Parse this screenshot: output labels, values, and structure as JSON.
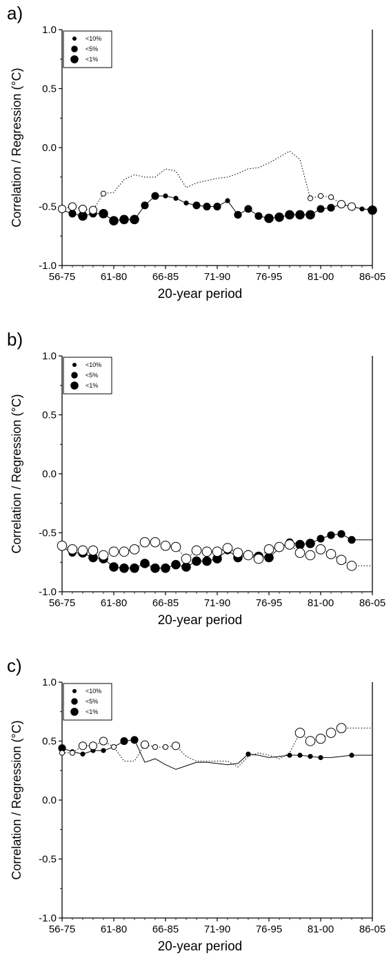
{
  "chart_data": [
    {
      "type": "line",
      "panel_label": "a)",
      "xlabel": "20-year period",
      "ylabel": "Correlation / Regression (°C)",
      "ylim": [
        -1.0,
        1.0
      ],
      "yticks": [
        "1.0",
        "0.5",
        "0.0",
        "-0.5",
        "-1.0"
      ],
      "xticks": [
        "56-75",
        "61-80",
        "66-85",
        "71-90",
        "76-95",
        "81-00",
        "86-05"
      ],
      "legend": {
        "position": "top-left",
        "entries": [
          "<10%",
          "<5%",
          "<1%"
        ]
      },
      "grid": false,
      "x": [
        1965,
        1966,
        1967,
        1968,
        1969,
        1970,
        1971,
        1972,
        1973,
        1974,
        1975,
        1976,
        1977,
        1978,
        1979,
        1980,
        1981,
        1982,
        1983,
        1984,
        1985,
        1986,
        1987,
        1988,
        1989,
        1990,
        1991,
        1992,
        1993,
        1994,
        1995
      ],
      "series": [
        {
          "style": "solid-filled",
          "values": [
            -0.53,
            -0.56,
            -0.58,
            -0.56,
            -0.56,
            -0.62,
            -0.61,
            -0.61,
            -0.49,
            -0.41,
            -0.41,
            -0.43,
            -0.47,
            -0.49,
            -0.5,
            -0.5,
            -0.45,
            -0.57,
            -0.52,
            -0.58,
            -0.6,
            -0.59,
            -0.57,
            -0.57,
            -0.57,
            -0.52,
            -0.51,
            -0.48,
            -0.5,
            -0.52,
            -0.53
          ],
          "significance": [
            0,
            2,
            3,
            2,
            3,
            3,
            3,
            3,
            2,
            2,
            1,
            1,
            1,
            2,
            2,
            2,
            1,
            2,
            2,
            2,
            3,
            3,
            3,
            3,
            3,
            2,
            2,
            1,
            1,
            1,
            3
          ]
        },
        {
          "style": "dotted-open",
          "values": [
            -0.52,
            -0.5,
            -0.52,
            -0.53,
            -0.39,
            -0.38,
            -0.27,
            -0.23,
            -0.25,
            -0.25,
            -0.18,
            -0.2,
            -0.34,
            -0.3,
            -0.28,
            -0.26,
            -0.25,
            -0.22,
            -0.18,
            -0.17,
            -0.13,
            -0.08,
            -0.03,
            -0.1,
            -0.43,
            -0.41,
            -0.42,
            -0.48,
            -0.5,
            -0.52,
            -0.52
          ],
          "significance": [
            2,
            2,
            2,
            2,
            1,
            0,
            0,
            0,
            0,
            0,
            0,
            0,
            0,
            0,
            0,
            0,
            0,
            0,
            0,
            0,
            0,
            0,
            0,
            0,
            1,
            1,
            1,
            2,
            2,
            0,
            0
          ]
        }
      ]
    },
    {
      "type": "line",
      "panel_label": "b)",
      "xlabel": "20-year period",
      "ylabel": "Correlation / Regression (°C)",
      "ylim": [
        -1.0,
        1.0
      ],
      "yticks": [
        "1.0",
        "0.5",
        "0.0",
        "-0.5",
        "-1.0"
      ],
      "xticks": [
        "56-75",
        "61-80",
        "66-85",
        "71-90",
        "76-95",
        "81-00",
        "86-05"
      ],
      "legend": {
        "position": "top-left",
        "entries": [
          "<10%",
          "<5%",
          "<1%"
        ]
      },
      "grid": false,
      "x": [
        1965,
        1966,
        1967,
        1968,
        1969,
        1970,
        1971,
        1972,
        1973,
        1974,
        1975,
        1976,
        1977,
        1978,
        1979,
        1980,
        1981,
        1982,
        1983,
        1984,
        1985,
        1986,
        1987,
        1988,
        1989,
        1990,
        1991,
        1992,
        1993,
        1994,
        1995
      ],
      "series": [
        {
          "style": "solid-filled",
          "values": [
            -0.62,
            -0.67,
            -0.67,
            -0.71,
            -0.72,
            -0.79,
            -0.8,
            -0.8,
            -0.76,
            -0.8,
            -0.8,
            -0.77,
            -0.79,
            -0.74,
            -0.74,
            -0.72,
            -0.65,
            -0.71,
            -0.68,
            -0.7,
            -0.71,
            -0.63,
            -0.58,
            -0.6,
            -0.59,
            -0.55,
            -0.52,
            -0.51,
            -0.56,
            -0.56,
            -0.56
          ],
          "significance": [
            2,
            2,
            3,
            3,
            3,
            3,
            3,
            3,
            3,
            3,
            3,
            3,
            3,
            3,
            3,
            3,
            2,
            3,
            2,
            3,
            3,
            2,
            2,
            3,
            3,
            2,
            2,
            2,
            2,
            0,
            0
          ]
        },
        {
          "style": "dotted-open",
          "values": [
            -0.61,
            -0.64,
            -0.65,
            -0.65,
            -0.69,
            -0.66,
            -0.66,
            -0.64,
            -0.58,
            -0.58,
            -0.61,
            -0.62,
            -0.72,
            -0.65,
            -0.66,
            -0.66,
            -0.63,
            -0.67,
            -0.69,
            -0.72,
            -0.64,
            -0.62,
            -0.6,
            -0.67,
            -0.69,
            -0.64,
            -0.68,
            -0.73,
            -0.78,
            -0.78,
            -0.78
          ],
          "significance": [
            3,
            3,
            3,
            3,
            3,
            3,
            3,
            3,
            3,
            3,
            3,
            3,
            3,
            3,
            3,
            3,
            3,
            3,
            3,
            3,
            3,
            3,
            3,
            3,
            3,
            3,
            3,
            3,
            3,
            0,
            0
          ]
        }
      ]
    },
    {
      "type": "line",
      "panel_label": "c)",
      "xlabel": "20-year period",
      "ylabel": "Correlation / Regression (°C)",
      "ylim": [
        -1.0,
        1.0
      ],
      "yticks": [
        "1.0",
        "0.5",
        "0.0",
        "-0.5",
        "-1.0"
      ],
      "xticks": [
        "56-75",
        "61-80",
        "66-85",
        "71-90",
        "76-95",
        "81-00",
        "86-05"
      ],
      "legend": {
        "position": "top-left",
        "entries": [
          "<10%",
          "<5%",
          "<1%"
        ]
      },
      "grid": false,
      "x": [
        1965,
        1966,
        1967,
        1968,
        1969,
        1970,
        1971,
        1972,
        1973,
        1974,
        1975,
        1976,
        1977,
        1978,
        1979,
        1980,
        1981,
        1982,
        1983,
        1984,
        1985,
        1986,
        1987,
        1988,
        1989,
        1990,
        1991,
        1992,
        1993,
        1994,
        1995
      ],
      "series": [
        {
          "style": "solid-filled",
          "values": [
            0.44,
            0.41,
            0.39,
            0.42,
            0.42,
            0.45,
            0.5,
            0.51,
            0.32,
            0.35,
            0.3,
            0.26,
            0.29,
            0.32,
            0.32,
            0.31,
            0.3,
            0.31,
            0.39,
            0.38,
            0.36,
            0.37,
            0.38,
            0.38,
            0.37,
            0.36,
            0.36,
            0.37,
            0.38,
            0.38,
            0.38
          ],
          "significance": [
            2,
            1,
            1,
            1,
            1,
            1,
            2,
            2,
            0,
            0,
            0,
            0,
            0,
            0,
            0,
            0,
            0,
            0,
            1,
            0,
            0,
            0,
            1,
            1,
            1,
            1,
            0,
            0,
            1,
            0,
            0
          ]
        },
        {
          "style": "dotted-open",
          "values": [
            0.4,
            0.4,
            0.46,
            0.46,
            0.5,
            0.45,
            0.33,
            0.33,
            0.47,
            0.45,
            0.45,
            0.46,
            0.37,
            0.33,
            0.33,
            0.33,
            0.33,
            0.28,
            0.37,
            0.4,
            0.38,
            0.35,
            0.4,
            0.57,
            0.5,
            0.52,
            0.57,
            0.61,
            0.61,
            0.61,
            0.61
          ],
          "significance": [
            1,
            1,
            2,
            2,
            2,
            1,
            0,
            0,
            2,
            1,
            1,
            2,
            0,
            0,
            0,
            0,
            0,
            0,
            0,
            0,
            0,
            0,
            0,
            3,
            3,
            3,
            3,
            3,
            0,
            0,
            0
          ]
        }
      ]
    }
  ]
}
